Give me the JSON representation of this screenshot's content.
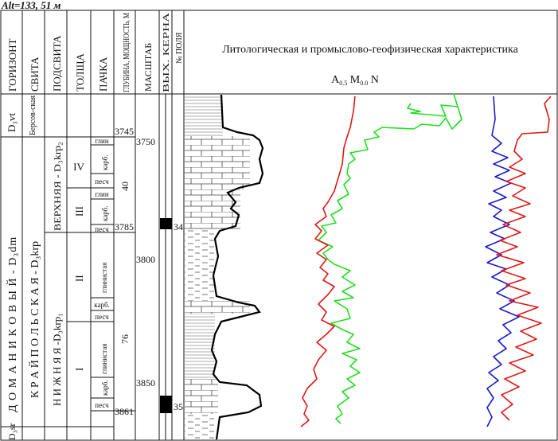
{
  "altitude": "Alt=133, 51 м",
  "columns": {
    "gorizont": "ГОРИЗОНТ",
    "svita": "СВИТА",
    "podsvita": "ПОДСВИТА",
    "tolshcha": "ТОЛЩА",
    "pachka": "ПАЧКА",
    "glubina": "ГЛУБИНА, МОЩНОСТЬ, М",
    "masshtab": "МАСШТАБ",
    "kern": "ВЫХ. КЕРНА",
    "polya": "№ ПОЛЯ",
    "description": "Литологическая и промыслово-геофизическая характеристика"
  },
  "curves_label": {
    "a": "A",
    "a_sub": "0.5",
    "m": "M",
    "m_sub": "0.0",
    "n": "N"
  },
  "horizons": {
    "top": "D₃vt",
    "main": "Д О М А Н И К О В Ы Й  -  D₃dm",
    "bottom": "D₃sr"
  },
  "svita": {
    "top": "Берсов-ская",
    "main": "К Р А Й П О Л Ь С К А Я  -  D₃krp"
  },
  "podsvita": {
    "upper": "ВЕРХНЯЯ - D₃krp₂",
    "lower": "Н И Ж Н Я Я  -D₃krp₁"
  },
  "tolshcha": {
    "iv": "IV",
    "iii": "III",
    "ii": "II",
    "i": "I"
  },
  "pachka": {
    "glin1": "глин",
    "karb1": "карб.",
    "pesch1": "песч",
    "glin2": "глин",
    "karb2": "карб.",
    "pesch2": "песч",
    "glin3": "глинистая",
    "karb3": "карб.",
    "pesch3": "песч",
    "glin4": "глинистая",
    "karb4": "карб.",
    "pesch4": "песч"
  },
  "depths": {
    "d1": "3745",
    "d2": "3785",
    "d3": "3861"
  },
  "thickness": {
    "upper": "40",
    "lower": "76"
  },
  "scale_ticks": [
    "3750",
    "3800",
    "3850"
  ],
  "core_samples": [
    "34",
    "35"
  ],
  "colors": {
    "green": "#22dd22",
    "red": "#e01818",
    "blue": "#1a1acc",
    "black": "#000000"
  }
}
